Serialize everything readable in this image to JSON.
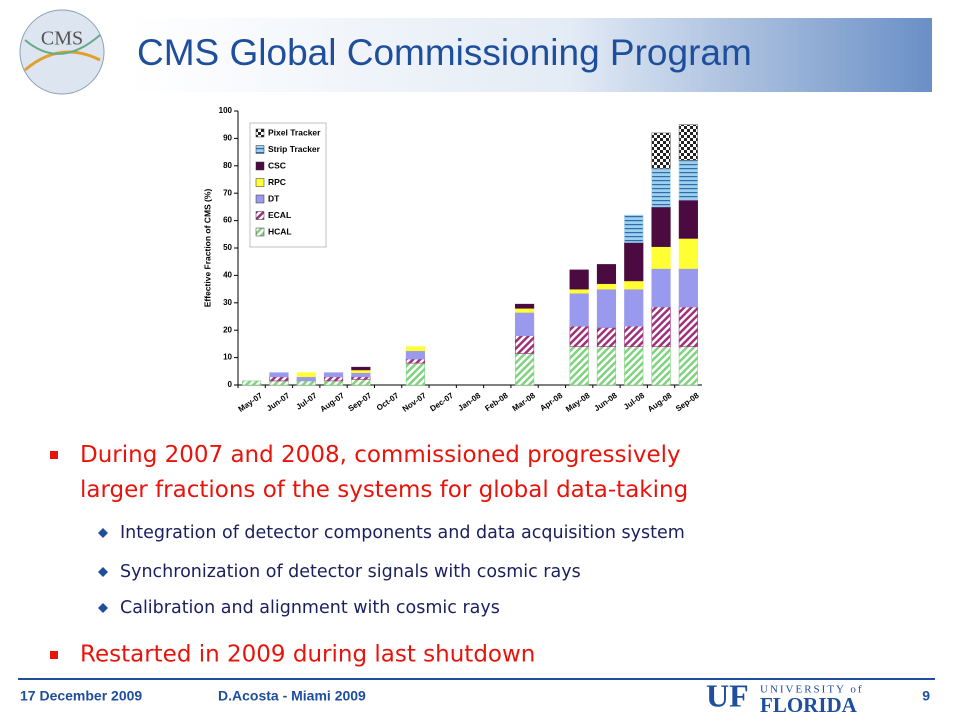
{
  "header": {
    "title": "CMS Global Commissioning Program",
    "logo": "CMS"
  },
  "chart_data": {
    "type": "bar",
    "stacked": true,
    "y_label": "Effective Fraction of CMS (%)",
    "categories": [
      "May-07",
      "Jun-07",
      "Jul-07",
      "Aug-07",
      "Sep-07",
      "Oct-07",
      "Nov-07",
      "Dec-07",
      "Jan-08",
      "Feb-08",
      "Mar-08",
      "Apr-08",
      "May-08",
      "Jun-08",
      "Jul-08",
      "Aug-08",
      "Sep-08"
    ],
    "series": [
      {
        "name": "HCAL",
        "color": "#7fd37f",
        "values": [
          1.5,
          1.5,
          1.5,
          1.5,
          2,
          0,
          8,
          0,
          0,
          0,
          11.5,
          0,
          14,
          14,
          14,
          14,
          14
        ]
      },
      {
        "name": "ECAL",
        "color": "#a0307a",
        "values": [
          0,
          1.5,
          0,
          1.5,
          1,
          0,
          1.5,
          0,
          0,
          0,
          6.5,
          0,
          7.5,
          7,
          7.5,
          14.5,
          14.5
        ]
      },
      {
        "name": "DT",
        "color": "#9999ee",
        "values": [
          0,
          1.5,
          1.5,
          1.5,
          1.5,
          0,
          3,
          0,
          0,
          0,
          8.5,
          0,
          12,
          14,
          13.5,
          14,
          14
        ]
      },
      {
        "name": "RPC",
        "color": "#ffff33",
        "values": [
          0,
          0,
          1.5,
          0,
          1,
          0,
          1.5,
          0,
          0,
          0,
          1.5,
          0,
          1.5,
          2,
          3,
          8,
          11
        ]
      },
      {
        "name": "CSC",
        "color": "#4b0a40",
        "values": [
          0,
          0,
          0,
          0,
          1,
          0,
          0,
          0,
          0,
          0,
          1.5,
          0,
          7,
          7,
          14,
          14.5,
          14
        ]
      },
      {
        "name": "Strip Tracker",
        "color": "#9ecfee",
        "values": [
          0,
          0,
          0,
          0,
          0,
          0,
          0,
          0,
          0,
          0,
          0,
          0,
          0,
          0,
          10,
          14,
          14.5
        ]
      },
      {
        "name": "Pixel Tracker",
        "color": "#666666",
        "values": [
          0,
          0,
          0,
          0,
          0,
          0,
          0,
          0,
          0,
          0,
          0,
          0,
          0,
          0,
          0,
          13,
          13
        ]
      }
    ],
    "ylim": [
      0,
      100
    ],
    "yticks": [
      0,
      10,
      20,
      30,
      40,
      50,
      60,
      70,
      80,
      90,
      100
    ],
    "legend": "top-left"
  },
  "bullets": [
    {
      "text": "During 2007 and 2008, commissioned progressively larger fractions of the systems for global data-taking",
      "sub": [
        "Integration of detector components and data acquisition system",
        "Synchronization of detector signals with cosmic rays",
        "Calibration and alignment with cosmic rays"
      ]
    },
    {
      "text": "Restarted in 2009 during last shutdown",
      "sub": []
    }
  ],
  "footer": {
    "date": "17 December 2009",
    "author": "D.Acosta - Miami 2009",
    "page": "9",
    "logo_mark": "UF",
    "logo_top": "UNIVERSITY of",
    "logo_bottom": "FLORIDA"
  }
}
